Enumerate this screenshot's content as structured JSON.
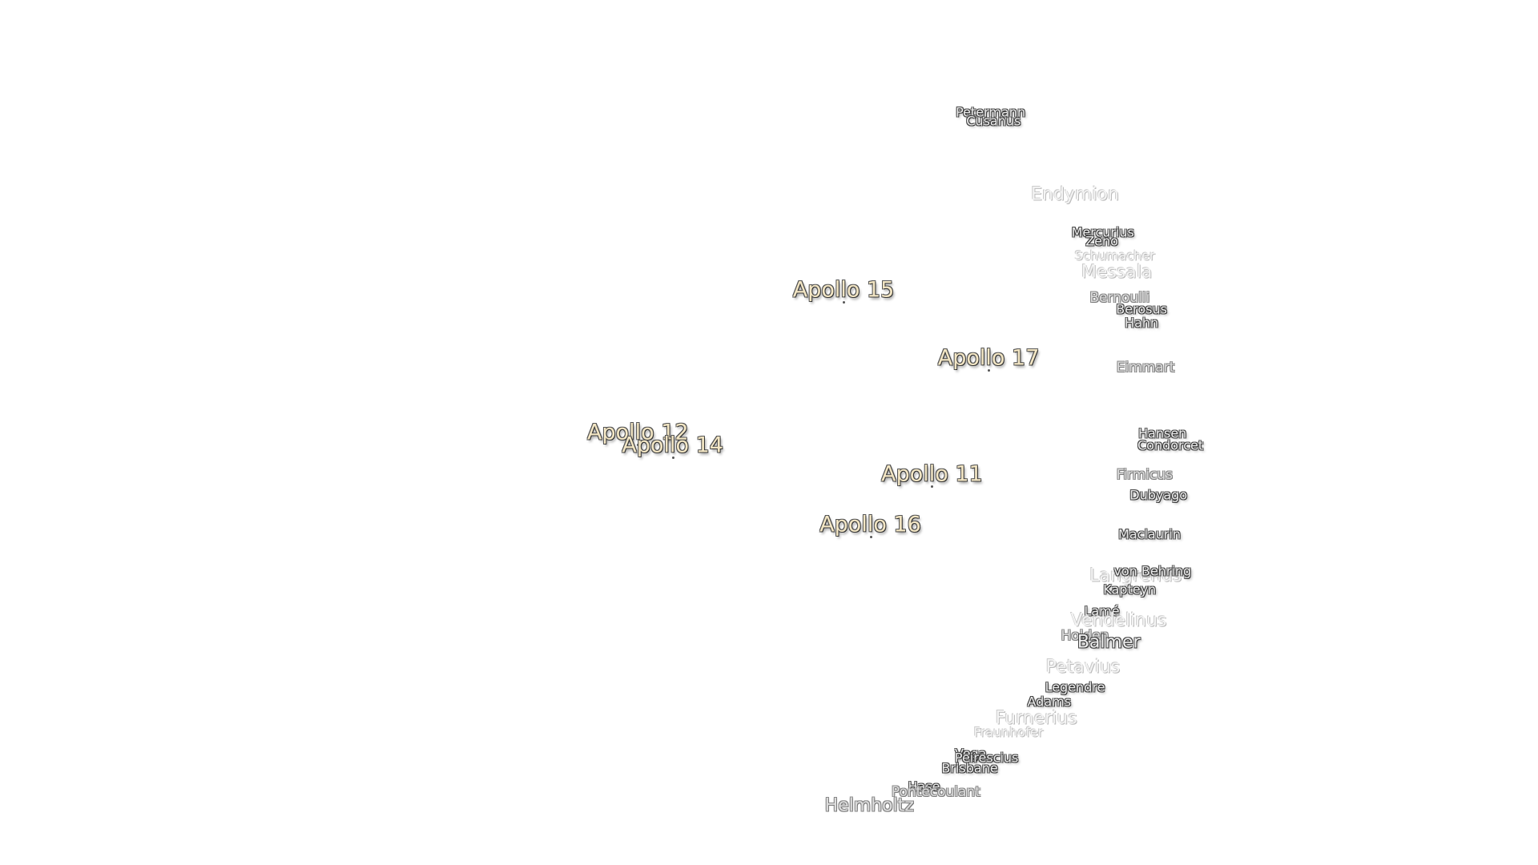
{
  "labels": [
    {
      "text": "Petermann"
    },
    {
      "text": "Cusanus"
    },
    {
      "text": "Endymion"
    },
    {
      "text": "Mercurius"
    },
    {
      "text": "Zeno"
    },
    {
      "text": "Schumacher"
    },
    {
      "text": "Messala"
    },
    {
      "text": "Apollo 15"
    },
    {
      "text": "Bernoulli"
    },
    {
      "text": "Berosus"
    },
    {
      "text": "Hahn"
    },
    {
      "text": "Apollo 17"
    },
    {
      "text": "Eimmart"
    },
    {
      "text": "Apollo 12"
    },
    {
      "text": "Hansen"
    },
    {
      "text": "Apollo 14"
    },
    {
      "text": "Condorcet"
    },
    {
      "text": "Apollo 11"
    },
    {
      "text": "Firmicus"
    },
    {
      "text": "Dubyago"
    },
    {
      "text": "Apollo 16"
    },
    {
      "text": "Maclaurin"
    },
    {
      "text": "Langrenus"
    },
    {
      "text": "von Behring"
    },
    {
      "text": "Kapteyn"
    },
    {
      "text": "Lamé"
    },
    {
      "text": "Vendelinus"
    },
    {
      "text": "Holden"
    },
    {
      "text": "Balmer"
    },
    {
      "text": "Petavius"
    },
    {
      "text": "Legendre"
    },
    {
      "text": "Adams"
    },
    {
      "text": "Furnerius"
    },
    {
      "text": "Fraunhofer"
    },
    {
      "text": "Vega"
    },
    {
      "text": "Peirescius"
    },
    {
      "text": "Brisbane"
    },
    {
      "text": "Hase"
    },
    {
      "text": "Pontécoulant"
    },
    {
      "text": "Helmholtz"
    }
  ]
}
